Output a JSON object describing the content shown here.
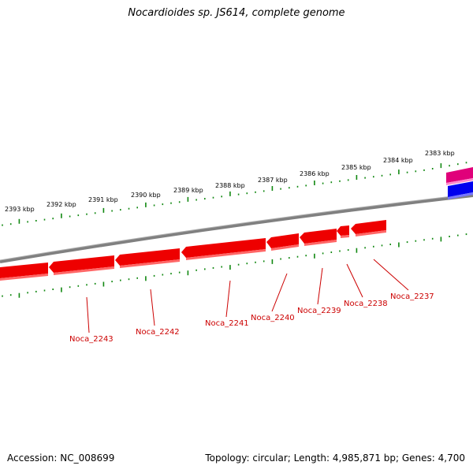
{
  "title": "Nocardioides sp. JS614, complete genome",
  "footer": {
    "accession": "Accession: NC_008699",
    "summary": "Topology: circular; Length: 4,985,871 bp; Genes: 4,700"
  },
  "colors": {
    "gene": "#ee0000",
    "gene_shadow": "#ff6666",
    "backbone": "#808080",
    "ticks": "#118811",
    "label": "#cc0000",
    "feature_pink": "#e0007a",
    "feature_blue": "#0000ee"
  },
  "position_labels": [
    "2393 kbp",
    "2392 kbp",
    "2391 kbp",
    "2390 kbp",
    "2389 kbp",
    "2388 kbp",
    "2387 kbp",
    "2386 kbp",
    "2385 kbp",
    "2384 kbp",
    "2383 kbp"
  ],
  "gene_labels": [
    "Noca_2243",
    "Noca_2242",
    "Noca_2241",
    "Noca_2240",
    "Noca_2239",
    "Noca_2238",
    "Noca_2237"
  ]
}
